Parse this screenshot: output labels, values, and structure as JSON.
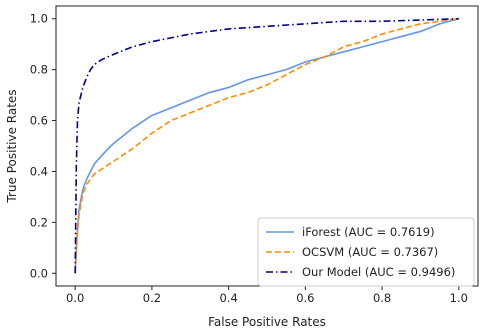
{
  "chart_data": {
    "type": "line",
    "title": "",
    "xlabel": "False Positive Rates",
    "ylabel": "True Positive Rates",
    "xlim": [
      -0.05,
      1.05
    ],
    "ylim": [
      -0.05,
      1.05
    ],
    "xticks": [
      "0.0",
      "0.2",
      "0.4",
      "0.6",
      "0.8",
      "1.0"
    ],
    "yticks": [
      "0.0",
      "0.2",
      "0.4",
      "0.6",
      "0.8",
      "1.0"
    ],
    "grid": false,
    "legend_position": "lower-right",
    "series": [
      {
        "name": "iForest (AUC = 0.7619)",
        "color": "#6495ED",
        "style": "solid",
        "x": [
          0,
          0.005,
          0.01,
          0.02,
          0.03,
          0.05,
          0.08,
          0.1,
          0.15,
          0.2,
          0.25,
          0.3,
          0.35,
          0.4,
          0.45,
          0.5,
          0.55,
          0.6,
          0.65,
          0.7,
          0.75,
          0.8,
          0.85,
          0.9,
          0.95,
          1.0
        ],
        "y": [
          0,
          0.15,
          0.25,
          0.33,
          0.37,
          0.43,
          0.48,
          0.51,
          0.57,
          0.62,
          0.65,
          0.68,
          0.71,
          0.73,
          0.76,
          0.78,
          0.8,
          0.83,
          0.85,
          0.87,
          0.89,
          0.91,
          0.93,
          0.95,
          0.98,
          1.0
        ]
      },
      {
        "name": "OCSVM (AUC = 0.7367)",
        "color": "#FF8C00",
        "style": "dashed",
        "x": [
          0,
          0.005,
          0.01,
          0.02,
          0.03,
          0.05,
          0.08,
          0.1,
          0.15,
          0.2,
          0.25,
          0.3,
          0.35,
          0.4,
          0.45,
          0.5,
          0.55,
          0.6,
          0.65,
          0.7,
          0.75,
          0.8,
          0.85,
          0.9,
          0.95,
          1.0
        ],
        "y": [
          0,
          0.14,
          0.23,
          0.31,
          0.35,
          0.39,
          0.42,
          0.44,
          0.49,
          0.55,
          0.6,
          0.63,
          0.66,
          0.69,
          0.71,
          0.74,
          0.78,
          0.82,
          0.85,
          0.89,
          0.91,
          0.94,
          0.96,
          0.98,
          0.99,
          1.0
        ]
      },
      {
        "name": "Our Model (AUC = 0.9496)",
        "color": "#00008B",
        "style": "dashdot",
        "x": [
          0,
          0.003,
          0.006,
          0.01,
          0.015,
          0.02,
          0.03,
          0.04,
          0.05,
          0.07,
          0.1,
          0.15,
          0.2,
          0.3,
          0.4,
          0.5,
          0.6,
          0.7,
          0.8,
          0.9,
          1.0
        ],
        "y": [
          0,
          0.42,
          0.6,
          0.67,
          0.7,
          0.73,
          0.77,
          0.8,
          0.82,
          0.84,
          0.86,
          0.89,
          0.91,
          0.94,
          0.96,
          0.97,
          0.98,
          0.99,
          0.99,
          0.995,
          1.0
        ]
      }
    ]
  }
}
